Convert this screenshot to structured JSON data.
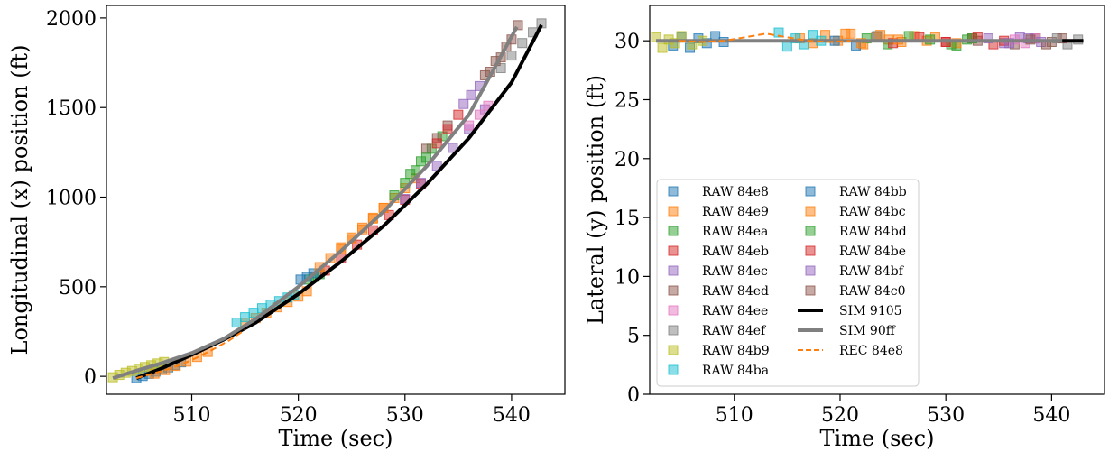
{
  "chart_data": [
    {
      "type": "line",
      "xlabel": "Time (sec)",
      "ylabel": "Longitudinal (x) position (ft)",
      "xlim": [
        502,
        545
      ],
      "ylim": [
        -100,
        2070
      ],
      "xticks": [
        510,
        520,
        530,
        540
      ],
      "yticks": [
        0,
        500,
        1000,
        1500,
        2000
      ],
      "grid": false,
      "raw_series": [
        {
          "name": "RAW 84e8",
          "color": "#1f77b4",
          "x": [
            504.8,
            505.4,
            506.0,
            506.6,
            507.2,
            507.8,
            508.4,
            509.0
          ],
          "y": [
            -10,
            2,
            14,
            26,
            38,
            50,
            64,
            78
          ]
        },
        {
          "name": "RAW 84e9",
          "color": "#ff7f0e",
          "x": [
            506.5,
            507.5,
            508.5,
            509.5,
            510.5,
            511.5,
            515.0,
            516.0,
            517.0,
            518.0,
            519.0,
            520.0,
            520.8,
            524.0,
            525.0,
            526.0,
            527.0,
            528.0,
            529.0,
            530.0,
            531.0
          ],
          "y": [
            15,
            35,
            58,
            82,
            108,
            136,
            300,
            325,
            355,
            385,
            415,
            445,
            475,
            720,
            775,
            830,
            885,
            940,
            995,
            1050,
            1105
          ]
        },
        {
          "name": "RAW 84ea",
          "color": "#2ca02c",
          "x": [
            521.0,
            521.5,
            522.0,
            530.5,
            531.5,
            532.5,
            533.5
          ],
          "y": [
            540,
            555,
            570,
            1130,
            1200,
            1270,
            1340
          ]
        },
        {
          "name": "RAW 84eb",
          "color": "#d62728",
          "x": [
            522.5,
            524.0,
            525.5,
            527.0,
            528.5,
            530.0,
            531.5
          ],
          "y": [
            590,
            660,
            735,
            815,
            900,
            985,
            1075
          ]
        },
        {
          "name": "RAW 84ec",
          "color": "#9467bd",
          "x": [
            530.0,
            531.5,
            533.0,
            534.5,
            536.0,
            537.5
          ],
          "y": [
            990,
            1080,
            1175,
            1275,
            1380,
            1490
          ]
        },
        {
          "name": "RAW 84ed",
          "color": "#8c564b",
          "x": [
            532.0,
            533.0,
            534.0,
            538.0,
            539.0,
            540.0,
            540.6
          ],
          "y": [
            1270,
            1330,
            1400,
            1700,
            1780,
            1880,
            1960
          ]
        },
        {
          "name": "RAW 84ee",
          "color": "#e377c2",
          "x": [
            536.0,
            537.0,
            537.8
          ],
          "y": [
            1400,
            1460,
            1510
          ]
        },
        {
          "name": "RAW 84ef",
          "color": "#7f7f7f",
          "x": [
            539.0,
            540.0,
            541.0,
            542.0,
            542.8
          ],
          "y": [
            1720,
            1790,
            1860,
            1920,
            1970
          ]
        },
        {
          "name": "RAW 84b9",
          "color": "#bcbd22",
          "x": [
            502.6,
            503.2,
            503.8,
            504.4,
            505.0,
            505.6,
            506.2,
            506.8,
            507.4
          ],
          "y": [
            -5,
            8,
            20,
            30,
            42,
            52,
            62,
            72,
            80
          ]
        },
        {
          "name": "RAW 84ba",
          "color": "#17becf",
          "x": [
            514.2,
            515.0,
            515.8,
            516.6,
            517.4,
            518.2,
            519.0,
            519.6
          ],
          "y": [
            300,
            330,
            355,
            380,
            400,
            420,
            440,
            455
          ]
        },
        {
          "name": "RAW 84bb",
          "color": "#1f77b4",
          "x": [
            520.2,
            520.8,
            521.4
          ],
          "y": [
            540,
            555,
            575
          ]
        },
        {
          "name": "RAW 84bc",
          "color": "#ff7f0e",
          "x": [
            522.0,
            523.0,
            524.0,
            525.0,
            526.0,
            527.0,
            528.0
          ],
          "y": [
            610,
            660,
            710,
            765,
            820,
            880,
            940
          ]
        },
        {
          "name": "RAW 84bd",
          "color": "#2ca02c",
          "x": [
            529.0,
            530.0,
            531.0,
            532.0
          ],
          "y": [
            1010,
            1080,
            1150,
            1220
          ]
        },
        {
          "name": "RAW 84be",
          "color": "#d62728",
          "x": [
            533.0,
            534.0,
            535.0
          ],
          "y": [
            1300,
            1380,
            1460
          ]
        },
        {
          "name": "RAW 84bf",
          "color": "#9467bd",
          "x": [
            535.5,
            536.2,
            537.0
          ],
          "y": [
            1520,
            1570,
            1620
          ]
        },
        {
          "name": "RAW 84c0",
          "color": "#8c564b",
          "x": [
            537.5,
            538.5,
            539.5
          ],
          "y": [
            1680,
            1760,
            1840
          ]
        }
      ],
      "line_series": [
        {
          "name": "SIM 9105",
          "color": "#000000",
          "style": "solid",
          "x": [
            504.8,
            507,
            510,
            513,
            516,
            520,
            524,
            528,
            532,
            536,
            540,
            542.8
          ],
          "y": [
            -10,
            40,
            120,
            205,
            300,
            460,
            640,
            840,
            1070,
            1330,
            1640,
            1960
          ]
        },
        {
          "name": "SIM 90ff",
          "color": "#808080",
          "style": "solid",
          "x": [
            502.6,
            505,
            507,
            510,
            513,
            516,
            520,
            524,
            528,
            532,
            536,
            540.5
          ],
          "y": [
            -10,
            35,
            70,
            130,
            210,
            320,
            500,
            700,
            920,
            1170,
            1460,
            1950
          ]
        },
        {
          "name": "REC 84e8",
          "color": "#ff7f0e",
          "style": "dashed",
          "x": [
            504.8,
            506,
            507.5,
            509,
            510.5,
            512,
            513.5,
            515
          ],
          "y": [
            -10,
            10,
            35,
            65,
            105,
            150,
            200,
            260
          ]
        }
      ]
    },
    {
      "type": "line",
      "xlabel": "Time (sec)",
      "ylabel": "Lateral (y) position (ft)",
      "xlim": [
        502,
        545
      ],
      "ylim": [
        0,
        33
      ],
      "xticks": [
        510,
        520,
        530,
        540
      ],
      "yticks": [
        0,
        5,
        10,
        15,
        20,
        25,
        30
      ],
      "grid": false,
      "legend_position": "lower-left",
      "raw_series": [
        {
          "name": "RAW 84e8",
          "color": "#1f77b4",
          "x": [
            504.2,
            505.0,
            505.8,
            506.6,
            507.4,
            508.2,
            509.0
          ],
          "y": [
            29.6,
            30.3,
            29.4,
            30.2,
            29.8,
            30.4,
            29.9
          ]
        },
        {
          "name": "RAW 84e9",
          "color": "#ff7f0e",
          "x": [
            516.2,
            517.4,
            518.6,
            519.8,
            521.0,
            522.2,
            523.4,
            524.6,
            525.8,
            527.0,
            528.2
          ],
          "y": [
            30.2,
            29.8,
            30.5,
            30.0,
            30.6,
            29.7,
            30.3,
            30.1,
            29.9,
            30.4,
            30.0
          ]
        },
        {
          "name": "RAW 84ea",
          "color": "#2ca02c",
          "x": [
            522.5,
            524.5,
            526.5,
            531.0,
            532.0
          ],
          "y": [
            30.2,
            29.7,
            30.4,
            29.6,
            30.1
          ]
        },
        {
          "name": "RAW 84eb",
          "color": "#d62728",
          "x": [
            525.0,
            527.5,
            530.0,
            532.5,
            534.5
          ],
          "y": [
            29.8,
            30.3,
            29.9,
            30.2,
            29.7
          ]
        },
        {
          "name": "RAW 84ec",
          "color": "#9467bd",
          "x": [
            534.0,
            535.5,
            537.0
          ],
          "y": [
            30.2,
            29.8,
            30.3
          ]
        },
        {
          "name": "RAW 84ed",
          "color": "#8c564b",
          "x": [
            533.0,
            536.5,
            538.5,
            540.0
          ],
          "y": [
            30.0,
            29.7,
            30.2,
            29.9
          ]
        },
        {
          "name": "RAW 84ee",
          "color": "#e377c2",
          "x": [
            536.5,
            537.5,
            538.5
          ],
          "y": [
            30.1,
            29.8,
            30.2
          ]
        },
        {
          "name": "RAW 84ef",
          "color": "#7f7f7f",
          "x": [
            540.5,
            541.5,
            542.5
          ],
          "y": [
            30.2,
            29.7,
            30.1
          ]
        },
        {
          "name": "RAW 84b9",
          "color": "#bcbd22",
          "x": [
            502.6,
            503.2,
            503.8,
            504.4,
            505.0,
            506.0,
            507.0
          ],
          "y": [
            30.3,
            29.4,
            30.1,
            29.8,
            30.4,
            29.7,
            30.0
          ]
        },
        {
          "name": "RAW 84ba",
          "color": "#17becf",
          "x": [
            514.2,
            515.0,
            515.8,
            516.6,
            517.4,
            518.2
          ],
          "y": [
            30.7,
            29.5,
            30.2,
            29.7,
            30.5,
            30.0
          ]
        },
        {
          "name": "RAW 84bb",
          "color": "#1f77b4",
          "x": [
            519.5,
            521.5,
            523.5
          ],
          "y": [
            30.0,
            29.6,
            30.4
          ]
        },
        {
          "name": "RAW 84bc",
          "color": "#ff7f0e",
          "x": [
            520.5,
            522.0,
            523.8,
            525.5,
            529.0,
            531.0
          ],
          "y": [
            30.6,
            29.8,
            30.5,
            30.1,
            30.3,
            29.8
          ]
        },
        {
          "name": "RAW 84bd",
          "color": "#2ca02c",
          "x": [
            528.5,
            530.5,
            532.5
          ],
          "y": [
            30.1,
            29.7,
            30.2
          ]
        },
        {
          "name": "RAW 84be",
          "color": "#d62728",
          "x": [
            530.0,
            533.0,
            535.5
          ],
          "y": [
            29.9,
            30.3,
            30.0
          ]
        },
        {
          "name": "RAW 84bf",
          "color": "#9467bd",
          "x": [
            536.0,
            537.8,
            539.0
          ],
          "y": [
            29.8,
            30.2,
            29.9
          ]
        },
        {
          "name": "RAW 84c0",
          "color": "#8c564b",
          "x": [
            538.0,
            539.5,
            541.0
          ],
          "y": [
            30.1,
            29.7,
            30.2
          ]
        }
      ],
      "line_series": [
        {
          "name": "SIM 9105",
          "color": "#000000",
          "style": "solid",
          "x": [
            541.0,
            543.0
          ],
          "y": [
            30.0,
            30.0
          ]
        },
        {
          "name": "SIM 90ff",
          "color": "#808080",
          "style": "solid",
          "x": [
            502.6,
            541.0
          ],
          "y": [
            30.0,
            30.0
          ]
        },
        {
          "name": "REC 84e8",
          "color": "#ff7f0e",
          "style": "dashed",
          "x": [
            504.8,
            507,
            509,
            511,
            513,
            515,
            517,
            519,
            521
          ],
          "y": [
            30.0,
            29.9,
            30.0,
            30.3,
            30.6,
            30.3,
            30.0,
            29.9,
            30.0
          ]
        }
      ]
    }
  ]
}
